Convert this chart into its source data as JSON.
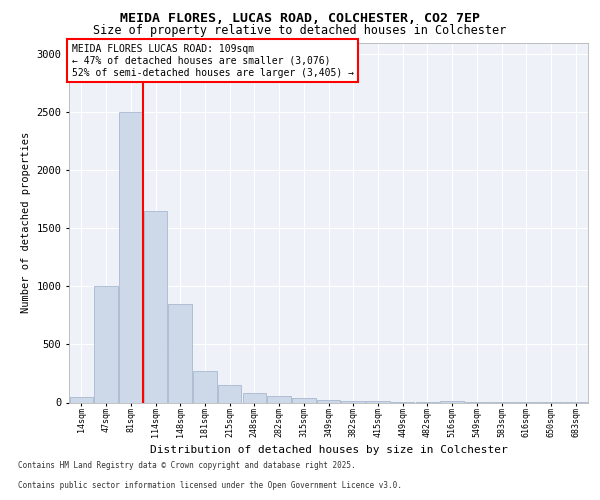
{
  "title1": "MEIDA FLORES, LUCAS ROAD, COLCHESTER, CO2 7EP",
  "title2": "Size of property relative to detached houses in Colchester",
  "xlabel": "Distribution of detached houses by size in Colchester",
  "ylabel": "Number of detached properties",
  "categories": [
    "14sqm",
    "47sqm",
    "81sqm",
    "114sqm",
    "148sqm",
    "181sqm",
    "215sqm",
    "248sqm",
    "282sqm",
    "315sqm",
    "349sqm",
    "382sqm",
    "415sqm",
    "449sqm",
    "482sqm",
    "516sqm",
    "549sqm",
    "583sqm",
    "616sqm",
    "650sqm",
    "683sqm"
  ],
  "values": [
    50,
    1000,
    2500,
    1650,
    850,
    270,
    150,
    80,
    60,
    40,
    20,
    15,
    10,
    5,
    3,
    15,
    2,
    1,
    1,
    1,
    1
  ],
  "bar_color": "#cdd8e8",
  "bar_edge_color": "#9eb0ca",
  "red_line_x": 2.5,
  "annotation_text": "MEIDA FLORES LUCAS ROAD: 109sqm\n← 47% of detached houses are smaller (3,076)\n52% of semi-detached houses are larger (3,405) →",
  "ylim": [
    0,
    3100
  ],
  "yticks": [
    0,
    500,
    1000,
    1500,
    2000,
    2500,
    3000
  ],
  "bg_color": "#eef2f8",
  "grid_color": "#ffffff",
  "footer1": "Contains HM Land Registry data © Crown copyright and database right 2025.",
  "footer2": "Contains public sector information licensed under the Open Government Licence v3.0."
}
